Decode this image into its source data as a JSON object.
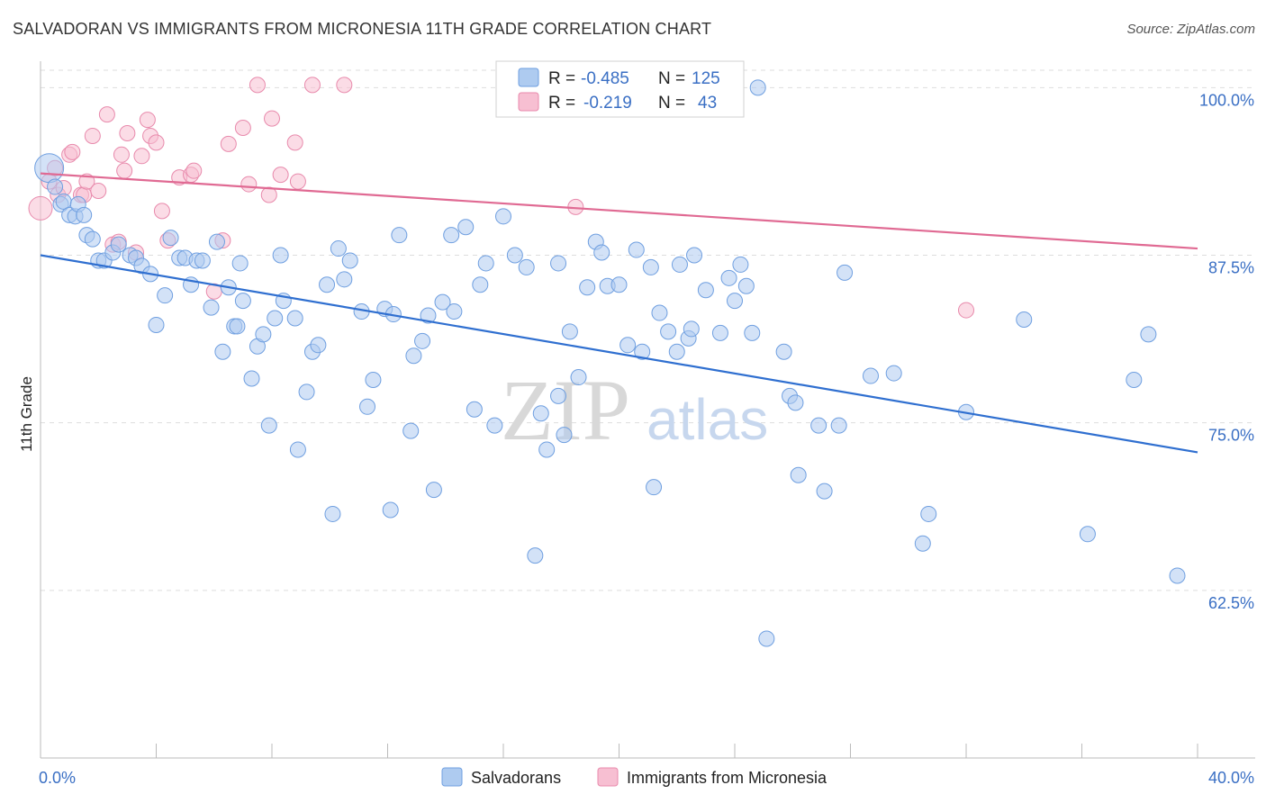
{
  "title": "SALVADORAN VS IMMIGRANTS FROM MICRONESIA 11TH GRADE CORRELATION CHART",
  "source": "Source: ZipAtlas.com",
  "watermark": {
    "zip": "ZIP",
    "atlas": "atlas"
  },
  "colors": {
    "salvadoran_fill": "#aecbf0",
    "salvadoran_stroke": "#6f9fe0",
    "salvadoran_line": "#2f6fd0",
    "micronesia_fill": "#f7bfd2",
    "micronesia_stroke": "#e88aac",
    "micronesia_line": "#e06a93",
    "tick_text": "#3a6fc4",
    "grid": "#dddddd"
  },
  "legend": {
    "row1": {
      "r_label": "R =",
      "r_value": "-0.485",
      "n_label": "N =",
      "n_value": "125"
    },
    "row2": {
      "r_label": "R =",
      "r_value": "-0.219",
      "n_label": "N =",
      "n_value": "43"
    }
  },
  "bottom_legend": {
    "series1": "Salvadorans",
    "series2": "Immigrants from Micronesia"
  },
  "chart_data": {
    "type": "scatter",
    "title": "SALVADORAN VS IMMIGRANTS FROM MICRONESIA 11TH GRADE CORRELATION CHART",
    "xlabel": "",
    "ylabel": "11th Grade",
    "xlim": [
      0,
      40
    ],
    "ylim": [
      50,
      101.5
    ],
    "x_tick_labels": [
      "0.0%",
      "40.0%"
    ],
    "y_ticks": [
      62.5,
      75.0,
      87.5,
      100.0
    ],
    "y_tick_labels": [
      "62.5%",
      "75.0%",
      "87.5%",
      "100.0%"
    ],
    "grid": true,
    "legend_position": "top-center",
    "series": [
      {
        "name": "Salvadorans",
        "R": -0.485,
        "N": 125,
        "trend": {
          "x": [
            0,
            40
          ],
          "y": [
            87.5,
            72.8
          ]
        },
        "points": [
          [
            0.3,
            94.0
          ],
          [
            0.5,
            92.6
          ],
          [
            0.7,
            91.3
          ],
          [
            0.8,
            91.5
          ],
          [
            1.0,
            90.5
          ],
          [
            1.2,
            90.4
          ],
          [
            1.3,
            91.3
          ],
          [
            1.5,
            90.5
          ],
          [
            1.6,
            89.0
          ],
          [
            1.8,
            88.7
          ],
          [
            2.0,
            87.1
          ],
          [
            2.2,
            87.1
          ],
          [
            2.5,
            87.7
          ],
          [
            2.7,
            88.3
          ],
          [
            3.1,
            87.5
          ],
          [
            3.3,
            87.3
          ],
          [
            3.5,
            86.7
          ],
          [
            3.8,
            86.1
          ],
          [
            4.0,
            82.3
          ],
          [
            4.3,
            84.5
          ],
          [
            4.5,
            88.8
          ],
          [
            4.8,
            87.3
          ],
          [
            5.0,
            87.3
          ],
          [
            5.2,
            85.3
          ],
          [
            5.4,
            87.1
          ],
          [
            5.6,
            87.1
          ],
          [
            5.9,
            83.6
          ],
          [
            6.1,
            88.5
          ],
          [
            6.3,
            80.3
          ],
          [
            6.5,
            85.1
          ],
          [
            6.7,
            82.2
          ],
          [
            6.8,
            82.2
          ],
          [
            6.9,
            86.9
          ],
          [
            7.0,
            84.1
          ],
          [
            7.3,
            78.3
          ],
          [
            7.5,
            80.7
          ],
          [
            7.7,
            81.6
          ],
          [
            7.9,
            74.8
          ],
          [
            8.1,
            82.8
          ],
          [
            8.3,
            87.5
          ],
          [
            8.4,
            84.1
          ],
          [
            8.8,
            82.8
          ],
          [
            8.9,
            73.0
          ],
          [
            9.2,
            77.3
          ],
          [
            9.4,
            80.3
          ],
          [
            9.6,
            80.8
          ],
          [
            9.9,
            85.3
          ],
          [
            10.1,
            68.2
          ],
          [
            10.3,
            88.0
          ],
          [
            10.5,
            85.7
          ],
          [
            10.7,
            87.1
          ],
          [
            11.1,
            83.3
          ],
          [
            11.3,
            76.2
          ],
          [
            11.5,
            78.2
          ],
          [
            11.9,
            83.5
          ],
          [
            12.1,
            68.5
          ],
          [
            12.2,
            83.1
          ],
          [
            12.4,
            89.0
          ],
          [
            12.8,
            74.4
          ],
          [
            12.9,
            80.0
          ],
          [
            13.2,
            81.1
          ],
          [
            13.4,
            83.0
          ],
          [
            13.6,
            70.0
          ],
          [
            13.9,
            84.0
          ],
          [
            14.2,
            89.0
          ],
          [
            14.3,
            83.3
          ],
          [
            14.7,
            89.6
          ],
          [
            15.0,
            76.0
          ],
          [
            15.2,
            85.3
          ],
          [
            15.4,
            86.9
          ],
          [
            15.7,
            74.8
          ],
          [
            16.0,
            90.4
          ],
          [
            16.4,
            87.5
          ],
          [
            16.8,
            86.6
          ],
          [
            17.1,
            65.1
          ],
          [
            17.3,
            75.7
          ],
          [
            17.5,
            73.0
          ],
          [
            17.9,
            77.0
          ],
          [
            17.9,
            86.9
          ],
          [
            18.1,
            74.1
          ],
          [
            18.3,
            81.8
          ],
          [
            18.6,
            78.4
          ],
          [
            18.9,
            85.1
          ],
          [
            19.2,
            88.5
          ],
          [
            19.4,
            87.7
          ],
          [
            19.6,
            85.2
          ],
          [
            20.0,
            85.3
          ],
          [
            20.3,
            80.8
          ],
          [
            20.6,
            87.9
          ],
          [
            20.8,
            80.3
          ],
          [
            21.1,
            86.6
          ],
          [
            21.2,
            70.2
          ],
          [
            21.4,
            83.2
          ],
          [
            21.7,
            81.8
          ],
          [
            22.0,
            80.3
          ],
          [
            22.1,
            86.8
          ],
          [
            22.4,
            81.3
          ],
          [
            22.5,
            82.0
          ],
          [
            22.6,
            87.5
          ],
          [
            23.0,
            84.9
          ],
          [
            23.5,
            81.7
          ],
          [
            23.8,
            85.8
          ],
          [
            24.0,
            84.1
          ],
          [
            24.2,
            86.8
          ],
          [
            24.4,
            85.2
          ],
          [
            24.6,
            81.7
          ],
          [
            24.8,
            100.0
          ],
          [
            25.1,
            58.9
          ],
          [
            25.7,
            80.3
          ],
          [
            25.9,
            77.0
          ],
          [
            26.1,
            76.5
          ],
          [
            26.2,
            71.1
          ],
          [
            26.9,
            74.8
          ],
          [
            27.1,
            69.9
          ],
          [
            27.6,
            74.8
          ],
          [
            27.8,
            86.2
          ],
          [
            28.7,
            78.5
          ],
          [
            29.5,
            78.7
          ],
          [
            30.5,
            66.0
          ],
          [
            30.7,
            68.2
          ],
          [
            32.0,
            75.8
          ],
          [
            34.0,
            82.7
          ],
          [
            36.2,
            66.7
          ],
          [
            37.8,
            78.2
          ],
          [
            38.3,
            81.6
          ],
          [
            39.3,
            63.6
          ]
        ]
      },
      {
        "name": "Immigrants from Micronesia",
        "R": -0.219,
        "N": 43,
        "trend": {
          "x": [
            0,
            40
          ],
          "y": [
            93.6,
            88.0
          ]
        },
        "points": [
          [
            0.0,
            91.0
          ],
          [
            0.3,
            93.0
          ],
          [
            0.5,
            94.0
          ],
          [
            0.6,
            92.0
          ],
          [
            0.8,
            92.5
          ],
          [
            1.0,
            95.0
          ],
          [
            1.1,
            95.2
          ],
          [
            1.4,
            92.0
          ],
          [
            1.5,
            92.0
          ],
          [
            1.6,
            93.0
          ],
          [
            1.8,
            96.4
          ],
          [
            2.0,
            92.3
          ],
          [
            2.3,
            98.0
          ],
          [
            2.5,
            88.3
          ],
          [
            2.7,
            88.5
          ],
          [
            2.9,
            93.8
          ],
          [
            3.0,
            96.6
          ],
          [
            3.3,
            87.7
          ],
          [
            3.5,
            94.9
          ],
          [
            3.7,
            97.6
          ],
          [
            3.8,
            96.4
          ],
          [
            4.0,
            95.9
          ],
          [
            4.2,
            90.8
          ],
          [
            4.4,
            88.6
          ],
          [
            4.8,
            93.3
          ],
          [
            5.2,
            93.5
          ],
          [
            5.3,
            93.8
          ],
          [
            6.0,
            84.8
          ],
          [
            6.3,
            88.6
          ],
          [
            6.5,
            95.8
          ],
          [
            7.0,
            97.0
          ],
          [
            7.2,
            92.8
          ],
          [
            7.5,
            100.2
          ],
          [
            8.0,
            97.7
          ],
          [
            8.3,
            93.5
          ],
          [
            8.8,
            95.9
          ],
          [
            8.9,
            93.0
          ],
          [
            9.4,
            100.2
          ],
          [
            10.5,
            100.2
          ],
          [
            18.5,
            91.1
          ],
          [
            32.0,
            83.4
          ],
          [
            7.9,
            92.0
          ],
          [
            2.8,
            95.0
          ]
        ]
      }
    ]
  }
}
